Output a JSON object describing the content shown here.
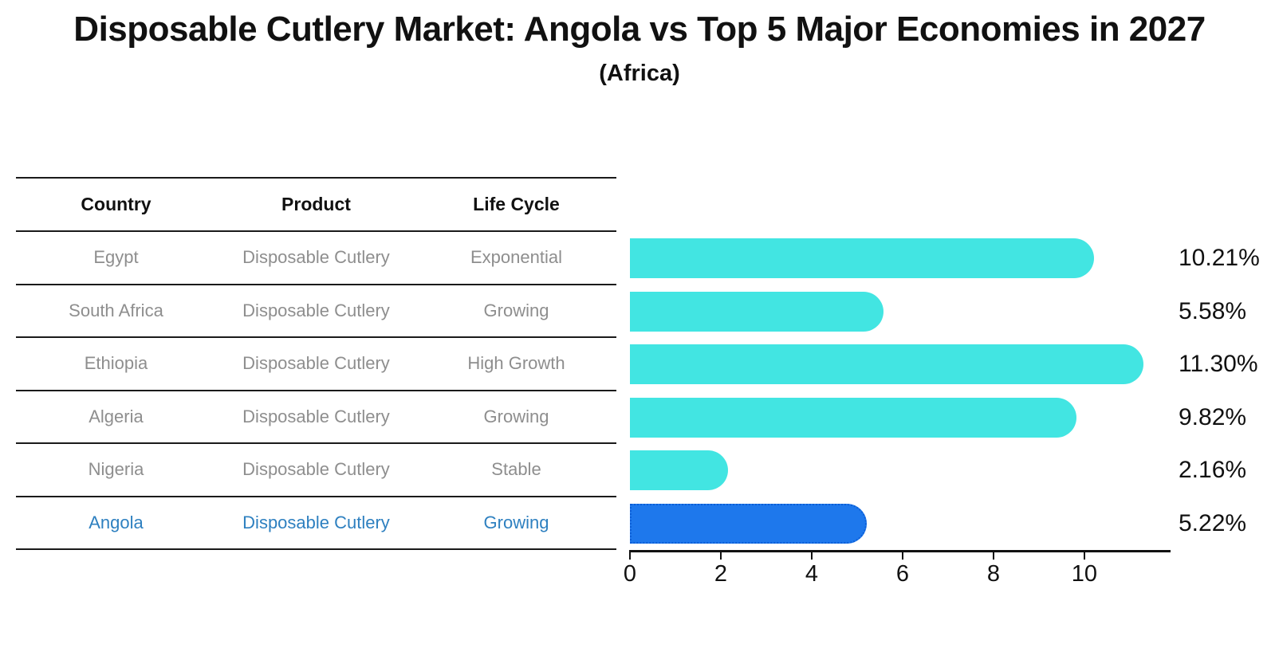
{
  "header": {
    "title": "Disposable Cutlery Market: Angola vs Top 5 Major Economies in 2027",
    "subtitle": "(Africa)"
  },
  "table": {
    "columns": [
      "Country",
      "Product",
      "Life Cycle"
    ],
    "rows": [
      {
        "country": "Egypt",
        "product": "Disposable Cutlery",
        "life_cycle": "Exponential",
        "highlight": false
      },
      {
        "country": "South Africa",
        "product": "Disposable Cutlery",
        "life_cycle": "Growing",
        "highlight": false
      },
      {
        "country": "Ethiopia",
        "product": "Disposable Cutlery",
        "life_cycle": "High Growth",
        "highlight": false
      },
      {
        "country": "Algeria",
        "product": "Disposable Cutlery",
        "life_cycle": "Growing",
        "highlight": false
      },
      {
        "country": "Nigeria",
        "product": "Disposable Cutlery",
        "life_cycle": "Stable",
        "highlight": false
      },
      {
        "country": "Angola",
        "product": "Disposable Cutlery",
        "life_cycle": "Growing",
        "highlight": true
      }
    ]
  },
  "chart_data": {
    "type": "bar",
    "orientation": "horizontal",
    "title": "Disposable Cutlery Market: Angola vs Top 5 Major Economies in 2027 (Africa)",
    "categories": [
      "Egypt",
      "South Africa",
      "Ethiopia",
      "Algeria",
      "Nigeria",
      "Angola"
    ],
    "values": [
      10.21,
      5.58,
      11.3,
      9.82,
      2.16,
      5.22
    ],
    "value_labels": [
      "10.21%",
      "5.58%",
      "11.30%",
      "9.82%",
      "2.16%",
      "5.22%"
    ],
    "highlight_index": 5,
    "xlim": [
      0,
      11.88
    ],
    "xticks": [
      0,
      2,
      4,
      6,
      8,
      10
    ],
    "grid": false,
    "legend": "none",
    "bar_color": "#42e5e2",
    "highlight_bar_color": "#1e78ec",
    "highlight_edge_color": "#0b5ed7",
    "highlight_text_color": "#2e80c0"
  }
}
